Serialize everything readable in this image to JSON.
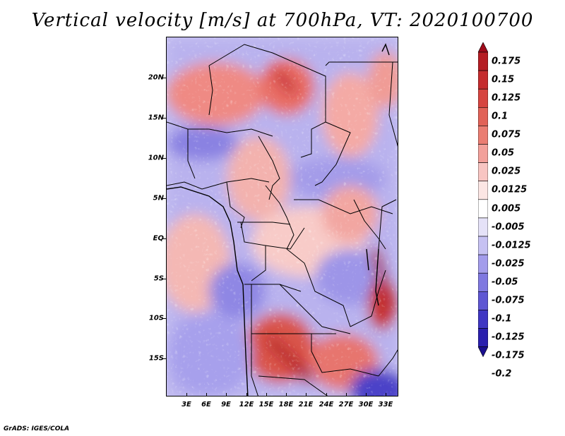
{
  "title": "Vertical velocity [m/s] at 700hPa, VT: 2020100700",
  "credit": "GrADS: IGES/COLA",
  "map": {
    "region": "Central and Southern Africa",
    "field": "Vertical velocity",
    "units": "m/s",
    "level": "700hPa",
    "valid_time": "2020100700",
    "lat_labels": [
      "20N",
      "15N",
      "10N",
      "5N",
      "EQ",
      "5S",
      "10S",
      "15S"
    ],
    "lon_labels": [
      "3E",
      "6E",
      "9E",
      "12E",
      "15E",
      "18E",
      "21E",
      "24E",
      "27E",
      "30E",
      "33E"
    ]
  },
  "colorbar": {
    "labels": [
      "0.175",
      "0.15",
      "0.125",
      "0.1",
      "0.075",
      "0.05",
      "0.025",
      "0.0125",
      "0.005",
      "-0.005",
      "-0.0125",
      "-0.025",
      "-0.05",
      "-0.075",
      "-0.1",
      "-0.125",
      "-0.175",
      "-0.2"
    ],
    "colors": [
      "#9e0a1a",
      "#b51c23",
      "#c52c2e",
      "#d64540",
      "#e16257",
      "#ea7d72",
      "#f2a09a",
      "#f8c5c2",
      "#fce6e4",
      "#ffffff",
      "#e5e2f8",
      "#c6c1f2",
      "#a39ceb",
      "#7f78e0",
      "#5e56d3",
      "#3f36c3",
      "#2a1fae",
      "#1a0f8f"
    ]
  }
}
